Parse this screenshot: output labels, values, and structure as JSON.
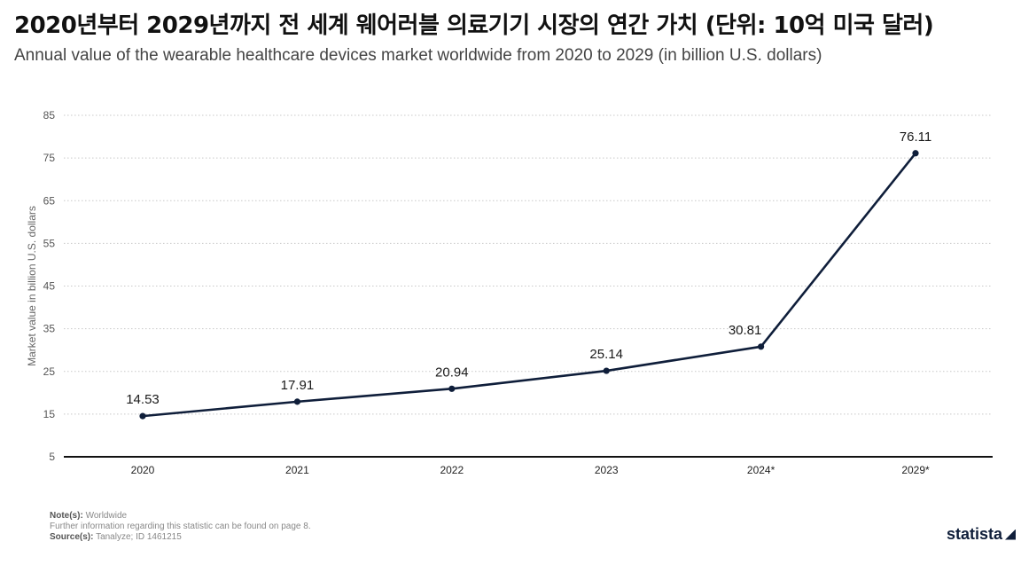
{
  "header": {
    "title": "2020년부터 2029년까지 전 세계 웨어러블 의료기기 시장의 연간 가치 (단위: 10억 미국 달러)",
    "subtitle": "Annual value of the wearable healthcare devices market worldwide from 2020 to 2029 (in billion U.S. dollars)"
  },
  "chart_data": {
    "type": "line",
    "title": "2020년부터 2029년까지 전 세계 웨어러블 의료기기 시장의 연간 가치 (단위: 10억 미국 달러)",
    "subtitle": "Annual value of the wearable healthcare devices market worldwide from 2020 to 2029 (in billion U.S. dollars)",
    "xlabel": "",
    "ylabel": "Market value in billion U.S. dollars",
    "categories": [
      "2020",
      "2021",
      "2022",
      "2023",
      "2024*",
      "2029*"
    ],
    "series": [
      {
        "name": "Market value",
        "values": [
          14.53,
          17.91,
          20.94,
          25.14,
          30.81,
          76.11
        ],
        "labels": [
          "14.53",
          "17.91",
          "20.94",
          "25.14",
          "30.81",
          "76.11"
        ]
      }
    ],
    "ylim": [
      5,
      85
    ],
    "yticks": [
      5,
      15,
      25,
      35,
      45,
      55,
      65,
      75,
      85
    ],
    "grid": true,
    "line_color": "#0f1e3a"
  },
  "footer": {
    "note_label": "Note(s):",
    "note_text": "Worldwide",
    "further_info": "Further information regarding this statistic can be found on page 8.",
    "source_label": "Source(s):",
    "source_text": "Tanalyze; ID 1461215"
  },
  "logo": {
    "text": "statista"
  }
}
